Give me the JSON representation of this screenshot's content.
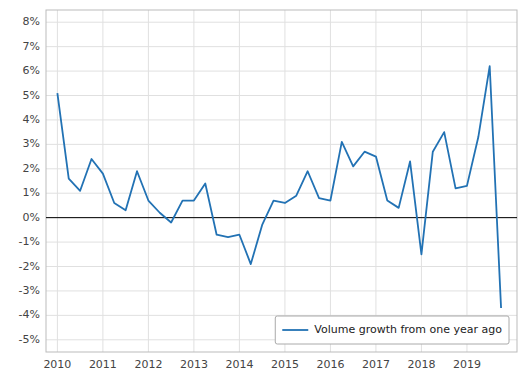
{
  "chart_data": {
    "type": "line",
    "x": [
      2010.0,
      2010.25,
      2010.5,
      2010.75,
      2011.0,
      2011.25,
      2011.5,
      2011.75,
      2012.0,
      2012.25,
      2012.5,
      2012.75,
      2013.0,
      2013.25,
      2013.5,
      2013.75,
      2014.0,
      2014.25,
      2014.5,
      2014.75,
      2015.0,
      2015.25,
      2015.5,
      2015.75,
      2016.0,
      2016.25,
      2016.5,
      2016.75,
      2017.0,
      2017.25,
      2017.5,
      2017.75,
      2018.0,
      2018.25,
      2018.5,
      2018.75,
      2019.0,
      2019.25,
      2019.5,
      2019.75
    ],
    "series": [
      {
        "name": "Volume growth from one year ago",
        "color": "#2272b4",
        "values": [
          5.1,
          1.6,
          1.1,
          2.4,
          1.8,
          0.6,
          0.3,
          1.9,
          0.7,
          0.2,
          -0.2,
          0.7,
          0.7,
          1.4,
          -0.7,
          -0.8,
          -0.7,
          -1.9,
          -0.3,
          0.7,
          0.6,
          0.9,
          1.9,
          0.8,
          0.7,
          3.1,
          2.1,
          2.7,
          2.5,
          0.7,
          0.4,
          2.3,
          -1.5,
          2.7,
          3.5,
          1.2,
          1.3,
          3.3,
          6.2,
          -3.7
        ]
      }
    ],
    "xlim": [
      2009.75,
      2020.1
    ],
    "xticks": [
      2010,
      2011,
      2012,
      2013,
      2014,
      2015,
      2016,
      2017,
      2018,
      2019
    ],
    "ylim": [
      -5.5,
      8.5
    ],
    "yticks": [
      {
        "value": -5,
        "label": "-5%"
      },
      {
        "value": -4,
        "label": "-4%"
      },
      {
        "value": -3,
        "label": "-3%"
      },
      {
        "value": -2,
        "label": "-2%"
      },
      {
        "value": -1,
        "label": "-1%"
      },
      {
        "value": 0,
        "label": "0%"
      },
      {
        "value": 1,
        "label": "1%"
      },
      {
        "value": 2,
        "label": "2%"
      },
      {
        "value": 3,
        "label": "3%"
      },
      {
        "value": 4,
        "label": "4%"
      },
      {
        "value": 5,
        "label": "5%"
      },
      {
        "value": 6,
        "label": "6%"
      },
      {
        "value": 7,
        "label": "7%"
      },
      {
        "value": 8,
        "label": "8%"
      }
    ],
    "grid": true,
    "legend": "lower right"
  }
}
